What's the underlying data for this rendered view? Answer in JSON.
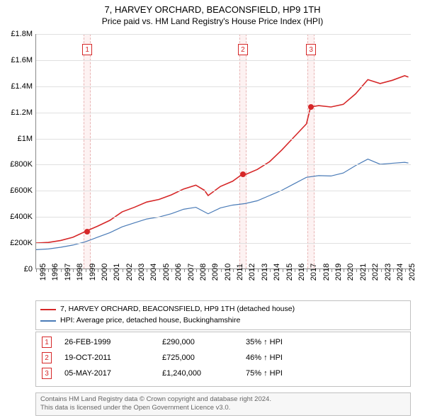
{
  "title": {
    "main": "7, HARVEY ORCHARD, BEACONSFIELD, HP9 1TH",
    "sub": "Price paid vs. HM Land Registry's House Price Index (HPI)"
  },
  "chart": {
    "type": "line",
    "xlim": [
      1995,
      2025.5
    ],
    "ylim": [
      0,
      1800000
    ],
    "ytick_step": 200000,
    "yticks": [
      {
        "v": 0,
        "label": "£0"
      },
      {
        "v": 200000,
        "label": "£200K"
      },
      {
        "v": 400000,
        "label": "£400K"
      },
      {
        "v": 600000,
        "label": "£600K"
      },
      {
        "v": 800000,
        "label": "£800K"
      },
      {
        "v": 1000000,
        "label": "£1M"
      },
      {
        "v": 1200000,
        "label": "£1.2M"
      },
      {
        "v": 1400000,
        "label": "£1.4M"
      },
      {
        "v": 1600000,
        "label": "£1.6M"
      },
      {
        "v": 1800000,
        "label": "£1.8M"
      }
    ],
    "xticks": [
      1995,
      1996,
      1997,
      1998,
      1999,
      2000,
      2001,
      2002,
      2003,
      2004,
      2005,
      2006,
      2007,
      2008,
      2009,
      2010,
      2011,
      2012,
      2013,
      2014,
      2015,
      2016,
      2017,
      2018,
      2019,
      2020,
      2021,
      2022,
      2023,
      2024,
      2025
    ],
    "colors": {
      "property_line": "#d62728",
      "hpi_line": "#4a7bb7",
      "grid": "#e0e0e0",
      "sale_band": "#fdf2f2",
      "background": "#ffffff"
    },
    "line_width_property": 1.6,
    "line_width_hpi": 1.2,
    "series_property": [
      {
        "x": 1995,
        "y": 195000
      },
      {
        "x": 1996,
        "y": 200000
      },
      {
        "x": 1997,
        "y": 215000
      },
      {
        "x": 1998,
        "y": 240000
      },
      {
        "x": 1999.15,
        "y": 290000
      },
      {
        "x": 2000,
        "y": 325000
      },
      {
        "x": 2001,
        "y": 370000
      },
      {
        "x": 2002,
        "y": 435000
      },
      {
        "x": 2003,
        "y": 470000
      },
      {
        "x": 2004,
        "y": 510000
      },
      {
        "x": 2005,
        "y": 530000
      },
      {
        "x": 2006,
        "y": 565000
      },
      {
        "x": 2007,
        "y": 610000
      },
      {
        "x": 2008,
        "y": 640000
      },
      {
        "x": 2008.7,
        "y": 600000
      },
      {
        "x": 2009,
        "y": 560000
      },
      {
        "x": 2010,
        "y": 630000
      },
      {
        "x": 2011,
        "y": 670000
      },
      {
        "x": 2011.8,
        "y": 725000
      },
      {
        "x": 2012,
        "y": 720000
      },
      {
        "x": 2013,
        "y": 760000
      },
      {
        "x": 2014,
        "y": 820000
      },
      {
        "x": 2015,
        "y": 910000
      },
      {
        "x": 2016,
        "y": 1010000
      },
      {
        "x": 2017,
        "y": 1110000
      },
      {
        "x": 2017.34,
        "y": 1240000
      },
      {
        "x": 2018,
        "y": 1250000
      },
      {
        "x": 2019,
        "y": 1240000
      },
      {
        "x": 2020,
        "y": 1260000
      },
      {
        "x": 2021,
        "y": 1340000
      },
      {
        "x": 2022,
        "y": 1450000
      },
      {
        "x": 2023,
        "y": 1420000
      },
      {
        "x": 2024,
        "y": 1445000
      },
      {
        "x": 2025,
        "y": 1480000
      },
      {
        "x": 2025.3,
        "y": 1470000
      }
    ],
    "series_hpi": [
      {
        "x": 1995,
        "y": 145000
      },
      {
        "x": 1996,
        "y": 150000
      },
      {
        "x": 1997,
        "y": 163000
      },
      {
        "x": 1998,
        "y": 180000
      },
      {
        "x": 1999,
        "y": 205000
      },
      {
        "x": 2000,
        "y": 240000
      },
      {
        "x": 2001,
        "y": 275000
      },
      {
        "x": 2002,
        "y": 320000
      },
      {
        "x": 2003,
        "y": 350000
      },
      {
        "x": 2004,
        "y": 380000
      },
      {
        "x": 2005,
        "y": 395000
      },
      {
        "x": 2006,
        "y": 420000
      },
      {
        "x": 2007,
        "y": 455000
      },
      {
        "x": 2008,
        "y": 470000
      },
      {
        "x": 2009,
        "y": 420000
      },
      {
        "x": 2010,
        "y": 465000
      },
      {
        "x": 2011,
        "y": 487000
      },
      {
        "x": 2012,
        "y": 498000
      },
      {
        "x": 2013,
        "y": 520000
      },
      {
        "x": 2014,
        "y": 560000
      },
      {
        "x": 2015,
        "y": 600000
      },
      {
        "x": 2016,
        "y": 650000
      },
      {
        "x": 2017,
        "y": 700000
      },
      {
        "x": 2018,
        "y": 713000
      },
      {
        "x": 2019,
        "y": 710000
      },
      {
        "x": 2020,
        "y": 733000
      },
      {
        "x": 2021,
        "y": 790000
      },
      {
        "x": 2022,
        "y": 840000
      },
      {
        "x": 2023,
        "y": 800000
      },
      {
        "x": 2024,
        "y": 808000
      },
      {
        "x": 2025,
        "y": 815000
      },
      {
        "x": 2025.3,
        "y": 810000
      }
    ],
    "sale_markers": [
      {
        "n": 1,
        "x": 1999.15,
        "y": 290000
      },
      {
        "n": 2,
        "x": 2011.8,
        "y": 725000
      },
      {
        "n": 3,
        "x": 2017.34,
        "y": 1240000
      }
    ]
  },
  "legend": {
    "items": [
      {
        "color": "#d62728",
        "label": "7, HARVEY ORCHARD, BEACONSFIELD, HP9 1TH (detached house)"
      },
      {
        "color": "#4a7bb7",
        "label": "HPI: Average price, detached house, Buckinghamshire"
      }
    ]
  },
  "sales": [
    {
      "n": "1",
      "date": "26-FEB-1999",
      "price": "£290,000",
      "pct": "35% ↑ HPI"
    },
    {
      "n": "2",
      "date": "19-OCT-2011",
      "price": "£725,000",
      "pct": "46% ↑ HPI"
    },
    {
      "n": "3",
      "date": "05-MAY-2017",
      "price": "£1,240,000",
      "pct": "75% ↑ HPI"
    }
  ],
  "footer": {
    "line1": "Contains HM Land Registry data © Crown copyright and database right 2024.",
    "line2": "This data is licensed under the Open Government Licence v3.0."
  }
}
